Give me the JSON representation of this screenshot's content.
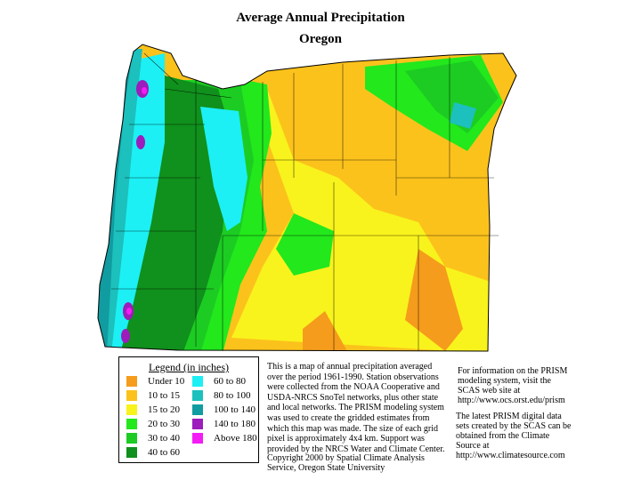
{
  "title": "Average Annual Precipitation",
  "subtitle": "Oregon",
  "legend": {
    "title": "Legend (in inches)",
    "items": [
      {
        "label": "Under 10",
        "color": "#f59c1c"
      },
      {
        "label": "10 to 15",
        "color": "#fcc21c"
      },
      {
        "label": "15 to 20",
        "color": "#f8f31c"
      },
      {
        "label": "20 to 30",
        "color": "#22e81c"
      },
      {
        "label": "30 to 40",
        "color": "#1ccc22"
      },
      {
        "label": "40 to 60",
        "color": "#10901c"
      },
      {
        "label": "60 to 80",
        "color": "#1cf0f4"
      },
      {
        "label": "80 to 100",
        "color": "#1cc0bc"
      },
      {
        "label": "100 to 140",
        "color": "#109ca0"
      },
      {
        "label": "140 to 180",
        "color": "#9c1cbc"
      },
      {
        "label": "Above 180",
        "color": "#f41cf4"
      }
    ]
  },
  "description": "This is a map of annual precipitation averaged over the period 1961-1990. Station observations were collected from the NOAA Cooperative and USDA-NRCS SnoTel networks, plus other state and local networks.  The PRISM modeling system was used to create the gridded estimates from which this map was made.  The size of each grid pixel is approximately 4x4 km.  Support was provided by the NRCS Water and Climate Center.",
  "copyright": "Copyright 2000 by Spatial Climate Analysis Service, Oregon State University",
  "info_prism": "For information on the PRISM modeling system, visit the SCAS web site at  http://www.ocs.orst.edu/prism",
  "info_data": "The latest PRISM digital data sets created by the SCAS can be obtained from the Climate Source at http://www.climatesource.com"
}
